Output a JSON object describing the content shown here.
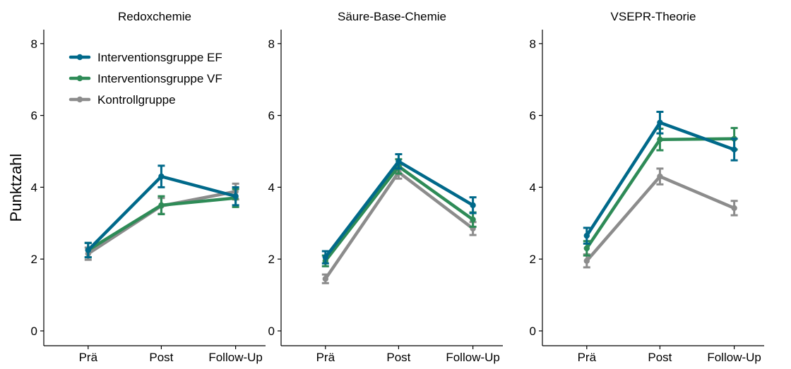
{
  "ylabel": "Punktzahl",
  "legend": [
    {
      "label": "Interventionsgruppe EF",
      "color": "#00698a"
    },
    {
      "label": "Interventionsgruppe VF",
      "color": "#2e8b57"
    },
    {
      "label": "Kontrollgruppe",
      "color": "#8c8c8c"
    }
  ],
  "chart_data": [
    {
      "type": "line",
      "title": "Redoxchemie",
      "categories": [
        "Prä",
        "Post",
        "Follow-Up"
      ],
      "ylabel": "Punktzahl",
      "ylim": [
        0,
        8.3
      ],
      "yticks": [
        0,
        2,
        4,
        6,
        8
      ],
      "series": [
        {
          "name": "Interventionsgruppe EF",
          "color": "#00698a",
          "values": [
            2.25,
            4.3,
            3.75
          ],
          "error": [
            0.2,
            0.3,
            0.25
          ]
        },
        {
          "name": "Interventionsgruppe VF",
          "color": "#2e8b57",
          "values": [
            2.25,
            3.5,
            3.7
          ],
          "error": [
            0.2,
            0.25,
            0.25
          ]
        },
        {
          "name": "Kontrollgruppe",
          "color": "#8c8c8c",
          "values": [
            2.15,
            3.48,
            3.88
          ],
          "error": [
            0.17,
            0.22,
            0.22
          ]
        }
      ]
    },
    {
      "type": "line",
      "title": "Säure-Base-Chemie",
      "categories": [
        "Prä",
        "Post",
        "Follow-Up"
      ],
      "ylim": [
        0,
        8.3
      ],
      "yticks": [
        0,
        2,
        4,
        6,
        8
      ],
      "series": [
        {
          "name": "Interventionsgruppe EF",
          "color": "#00698a",
          "values": [
            2.05,
            4.72,
            3.5
          ],
          "error": [
            0.17,
            0.2,
            0.22
          ]
        },
        {
          "name": "Interventionsgruppe VF",
          "color": "#2e8b57",
          "values": [
            1.95,
            4.58,
            3.1
          ],
          "error": [
            0.15,
            0.2,
            0.2
          ]
        },
        {
          "name": "Kontrollgruppe",
          "color": "#8c8c8c",
          "values": [
            1.45,
            4.42,
            2.85
          ],
          "error": [
            0.12,
            0.18,
            0.18
          ]
        }
      ]
    },
    {
      "type": "line",
      "title": "VSEPR-Theorie",
      "categories": [
        "Prä",
        "Post",
        "Follow-Up"
      ],
      "ylim": [
        0,
        8.3
      ],
      "yticks": [
        0,
        2,
        4,
        6,
        8
      ],
      "series": [
        {
          "name": "Interventionsgruppe EF",
          "color": "#00698a",
          "values": [
            2.65,
            5.8,
            5.05
          ],
          "error": [
            0.22,
            0.3,
            0.3
          ]
        },
        {
          "name": "Interventionsgruppe VF",
          "color": "#2e8b57",
          "values": [
            2.3,
            5.33,
            5.35
          ],
          "error": [
            0.2,
            0.3,
            0.3
          ]
        },
        {
          "name": "Kontrollgruppe",
          "color": "#8c8c8c",
          "values": [
            1.95,
            4.3,
            3.42
          ],
          "error": [
            0.18,
            0.22,
            0.2
          ]
        }
      ]
    }
  ]
}
